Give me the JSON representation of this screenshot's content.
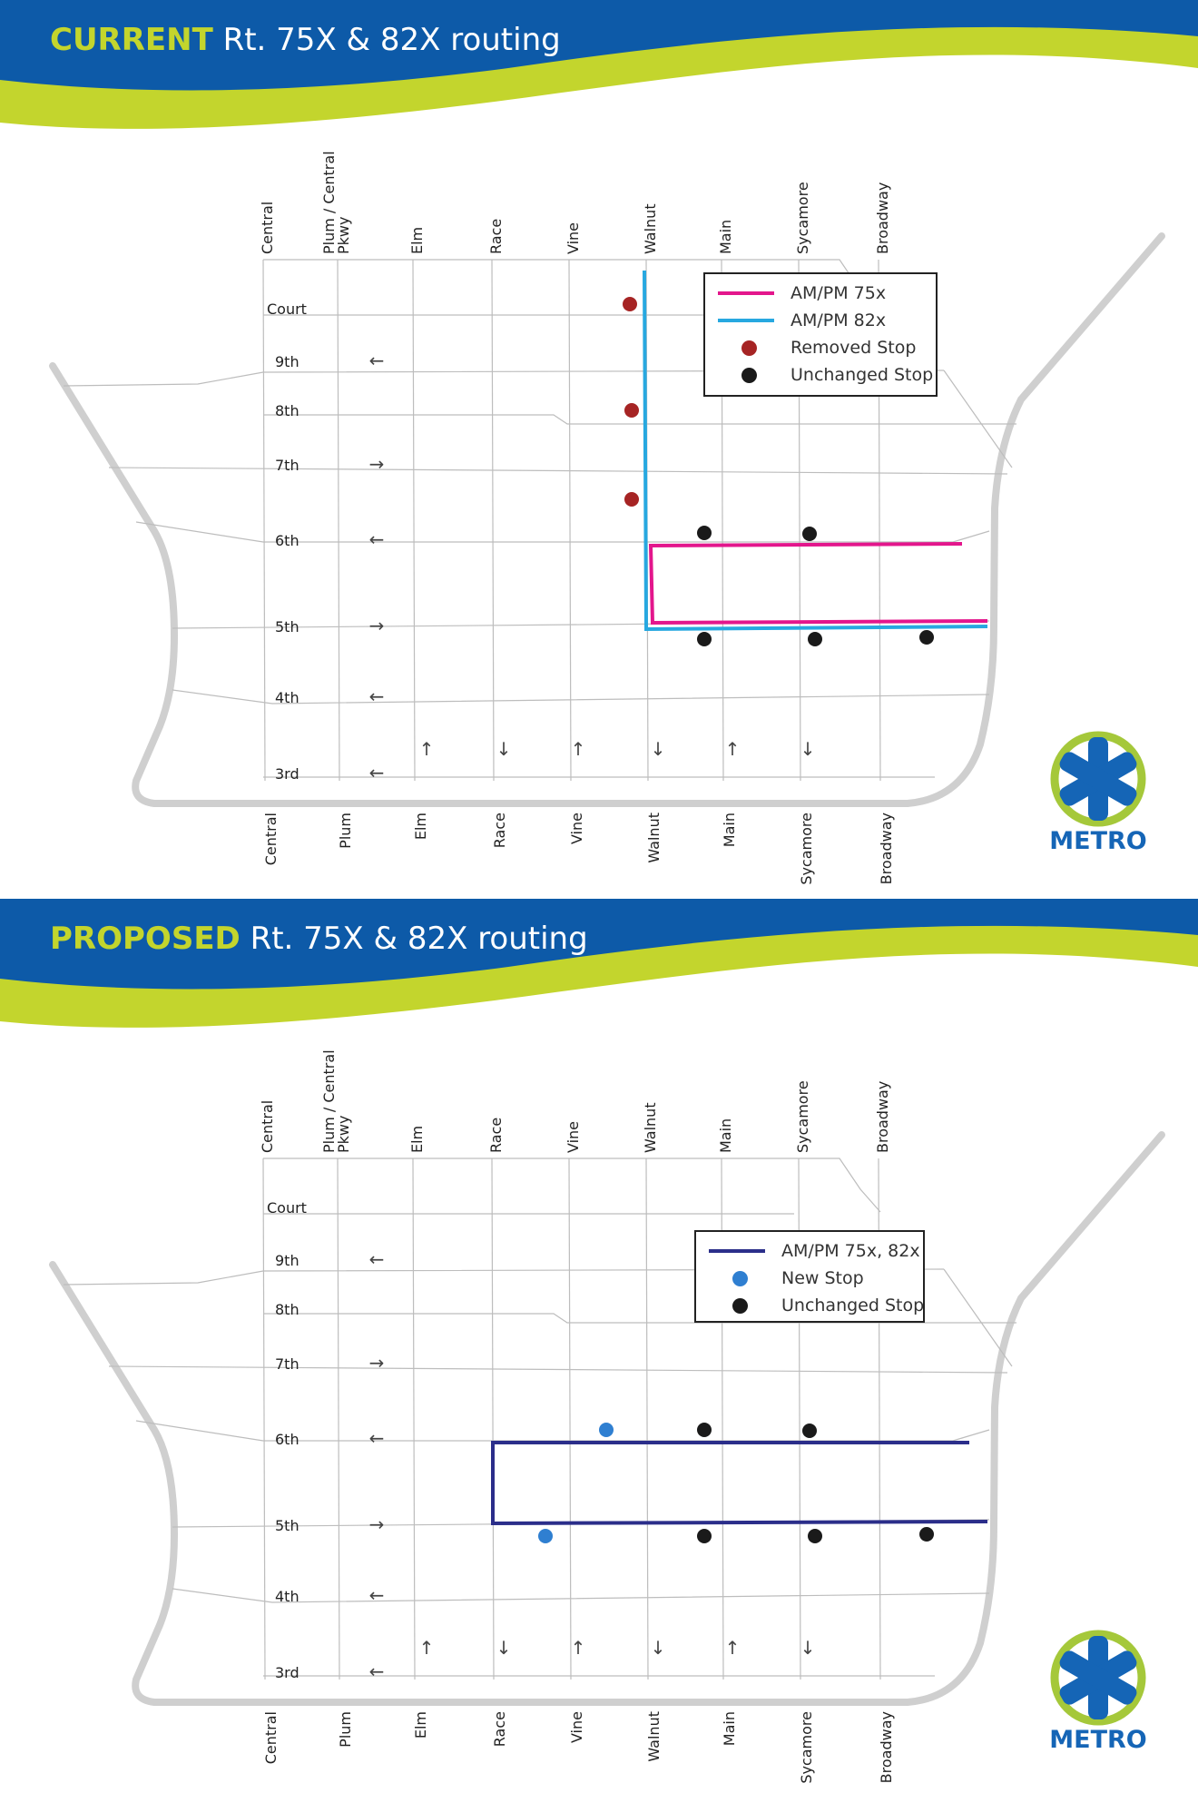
{
  "colors": {
    "banner_blue": "#0d5aa8",
    "banner_green": "#c3d52d",
    "street_grid": "#bdbdbd",
    "boundary": "#cfcfcf",
    "route_75x": "#e3168c",
    "route_82x": "#27a8e0",
    "route_combined": "#2b2e8a",
    "removed_stop": "#a62424",
    "new_stop": "#2f7fd1",
    "unchanged_stop": "#1a1a1a",
    "logo_blue": "#1565b6",
    "logo_green": "#a5c83a"
  },
  "streets": {
    "top_labels": [
      "Central",
      "Plum / Central Pkwy",
      "Elm",
      "Race",
      "Vine",
      "Walnut",
      "Main",
      "Sycamore",
      "Broadway"
    ],
    "bottom_labels": [
      "Central",
      "Plum",
      "Elm",
      "Race",
      "Vine",
      "Walnut",
      "Main",
      "Sycamore",
      "Broadway"
    ],
    "cross_streets": [
      {
        "name": "Court",
        "arrow": ""
      },
      {
        "name": "9th",
        "arrow": "←"
      },
      {
        "name": "8th",
        "arrow": ""
      },
      {
        "name": "7th",
        "arrow": "→"
      },
      {
        "name": "6th",
        "arrow": "←"
      },
      {
        "name": "5th",
        "arrow": "→"
      },
      {
        "name": "4th",
        "arrow": "←"
      },
      {
        "name": "3rd",
        "arrow": "←"
      }
    ],
    "ns_arrows": [
      "↑",
      "↓",
      "↑",
      "↓",
      "↑",
      "↓"
    ]
  },
  "logo": {
    "text": "METRO"
  },
  "current": {
    "title_keyword": "CURRENT",
    "title_rest": " Rt. 75X & 82X routing",
    "legend": [
      {
        "label": "AM/PM 75x",
        "kind": "line",
        "color": "#e3168c"
      },
      {
        "label": "AM/PM 82x",
        "kind": "line",
        "color": "#27a8e0"
      },
      {
        "label": "Removed Stop",
        "kind": "dot",
        "color": "#a62424"
      },
      {
        "label": "Unchanged Stop",
        "kind": "dot",
        "color": "#1a1a1a"
      }
    ]
  },
  "proposed": {
    "title_keyword": "PROPOSED",
    "title_rest": " Rt. 75X & 82X routing",
    "legend": [
      {
        "label": "AM/PM 75x, 82x",
        "kind": "line",
        "color": "#2b2e8a"
      },
      {
        "label": "New Stop",
        "kind": "dot",
        "color": "#2f7fd1"
      },
      {
        "label": "Unchanged Stop",
        "kind": "dot",
        "color": "#1a1a1a"
      }
    ]
  }
}
